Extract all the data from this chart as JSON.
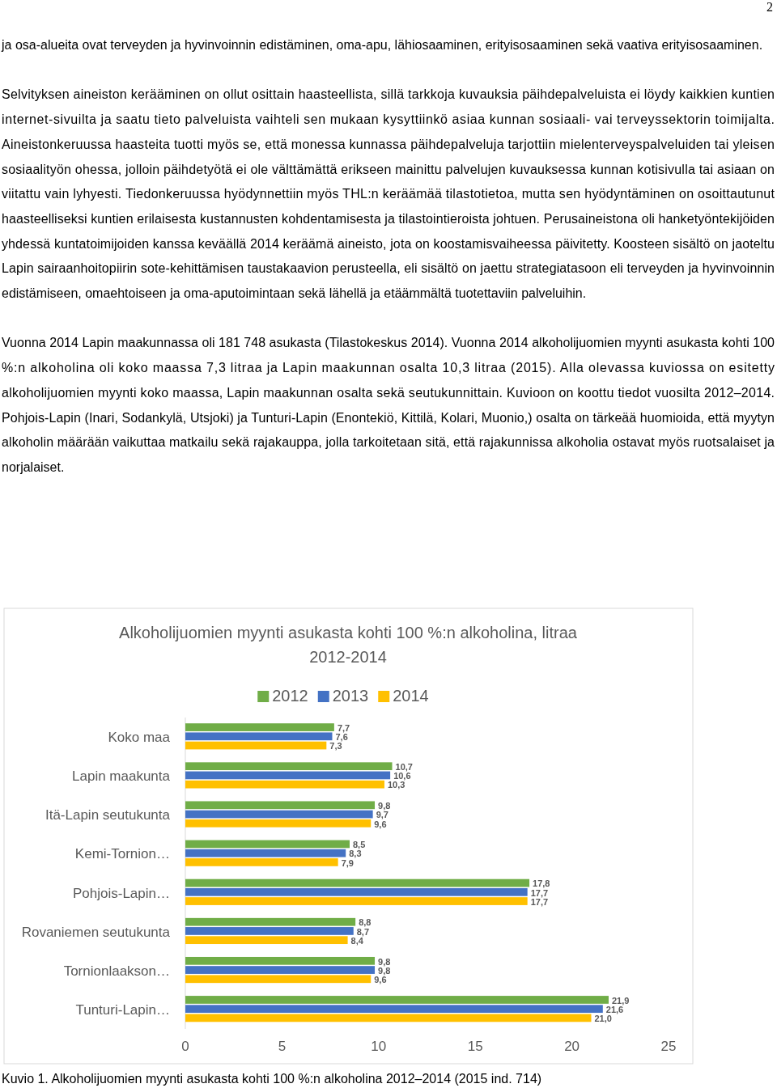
{
  "chart_data": {
    "type": "bar",
    "orientation": "horizontal",
    "title": "Alkoholijuomien myynti asukasta kohti 100 %:n alkoholina, litraa 2012-2014",
    "categories": [
      "Koko maa",
      "Lapin maakunta",
      "Itä-Lapin seutukunta",
      "Kemi-Tornion…",
      "Pohjois-Lapin…",
      "Rovaniemen seutukunta",
      "Tornionlaakson…",
      "Tunturi-Lapin…"
    ],
    "series": [
      {
        "name": "2012",
        "color": "#70ad47",
        "values": [
          7.7,
          10.7,
          9.8,
          8.5,
          17.8,
          8.8,
          9.8,
          21.9
        ],
        "value_labels": [
          "7,7",
          "10,7",
          "9,8",
          "8,5",
          "17,8",
          "8,8",
          "9,8",
          "21,9"
        ]
      },
      {
        "name": "2013",
        "color": "#4472c4",
        "values": [
          7.6,
          10.6,
          9.7,
          8.3,
          17.7,
          8.7,
          9.8,
          21.6
        ],
        "value_labels": [
          "7,6",
          "10,6",
          "9,7",
          "8,3",
          "17,7",
          "8,7",
          "9,8",
          "21,6"
        ]
      },
      {
        "name": "2014",
        "color": "#ffc000",
        "values": [
          7.3,
          10.3,
          9.6,
          7.9,
          17.7,
          8.4,
          9.6,
          21.0
        ],
        "value_labels": [
          "7,3",
          "10,3",
          "9,6",
          "7,9",
          "17,7",
          "8,4",
          "9,6",
          "21,0"
        ]
      }
    ],
    "xlim": [
      0,
      25
    ],
    "xticks": [
      0,
      5,
      10,
      15,
      20,
      25
    ],
    "legend": "top",
    "annotations": [
      "2",
      "ja osa-alueita ovat terveyden ja hyvinvoinnin edistäminen, oma-apu, lähiosaaminen, erityisosaaminen sekä vaativa erityisosaaminen.",
      "Selvityksen aineiston kerääminen on ollut osittain haasteellista, sillä tarkkoja kuvauksia päihdepalveluista ei löydy kaikkien kuntien internet-sivuilta ja saatu tieto palveluista vaihteli sen mukaan kysyttiinkö asiaa kunnan sosiaali- vai terveyssektorin toimijalta. Aineistonkeruussa haasteita tuotti myös se, että monessa kunnassa päihdepalveluja tarjottiin mielenterveyspalveluiden tai yleisen sosiaalityön ohessa, jolloin päihdetyötä ei ole välttämättä erikseen mainittu palvelujen kuvauksessa kunnan kotisivulla tai asiaan on viitattu vain lyhyesti. Tiedonkeruussa hyödynnettiin myös THL:n keräämää tilastotietoa, mutta sen hyödyntäminen on osoittautunut haasteelliseksi kuntien erilaisesta kustannusten kohdentamisesta ja tilastointieroista johtuen. Perusaineistona oli hanketyöntekijöiden yhdessä kuntatoimijoiden kanssa keväällä 2014 keräämä aineisto, jota on koostamisvaiheessa päivitetty. Koosteen sisältö on jaoteltu Lapin sairaanhoitopiirin sote-kehittämisen taustakaavion perusteella, eli sisältö on jaettu strategiatasoon eli terveyden ja hyvinvoinnin edistämiseen, omaehtoiseen ja oma-aputoimintaan sekä lähellä ja etäämmältä tuotettaviin palveluihin.",
      "Vuonna 2014 Lapin maakunnassa oli 181 748 asukasta (Tilastokeskus 2014). Vuonna 2014 alkoholijuomien myynti asukasta kohti 100 %:n alkoholina oli koko maassa 7,3 litraa ja Lapin maakunnan osalta 10,3 litraa (2015). Alla olevassa kuviossa on esitetty alkoholijuomien myynti koko maassa, Lapin maakunnan osalta sekä seutukunnittain. Kuvioon on koottu tiedot vuosilta 2012–2014. Pohjois-Lapin (Inari, Sodankylä, Utsjoki) ja Tunturi-Lapin (Enontekiö, Kittilä, Kolari, Muonio,) osalta on tärkeää huomioida, että myytyn alkoholin määrään vaikuttaa matkailu sekä rajakauppa, jolla tarkoitetaan sitä, että rajakunnissa alkoholia ostavat myös ruotsalaiset ja norjalaiset.",
      "Kuvio 1. Alkoholijuomien myynti asukasta kohti 100 %:n alkoholina 2012–2014 (2015 ind. 714)"
    ]
  }
}
